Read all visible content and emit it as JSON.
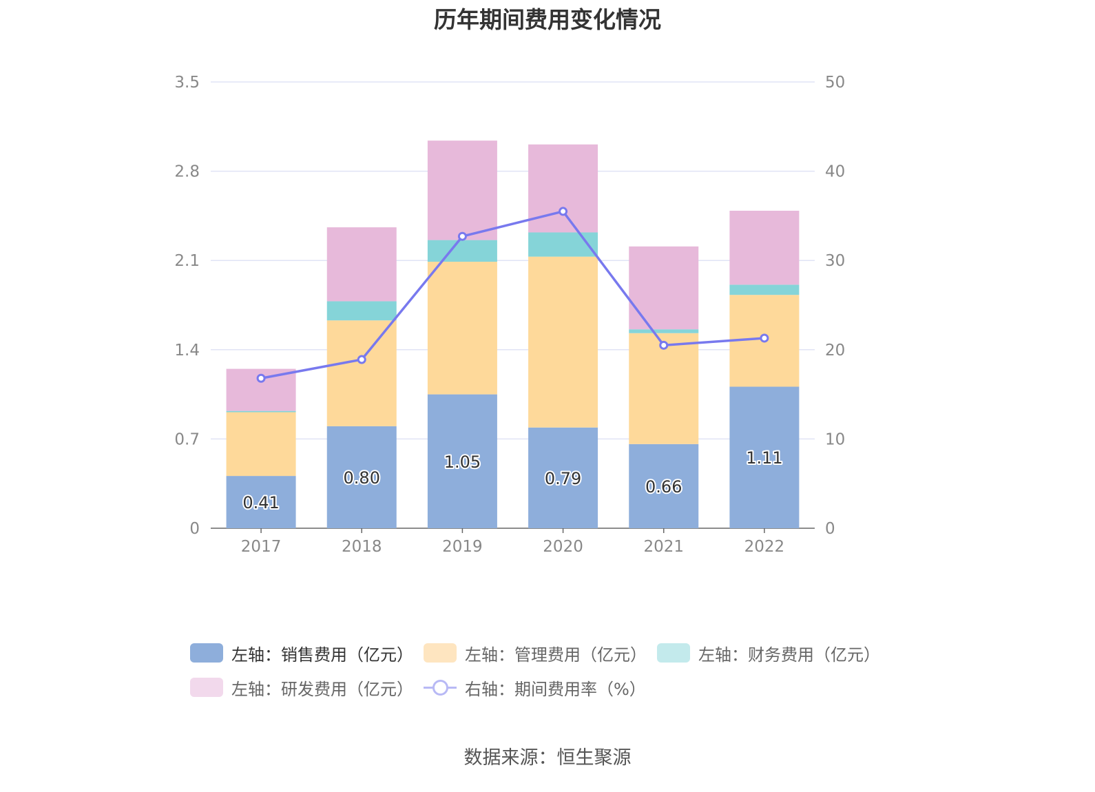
{
  "chart_data": {
    "type": "bar",
    "title": "历年期间费用变化情况",
    "categories": [
      "2017",
      "2018",
      "2019",
      "2020",
      "2021",
      "2022"
    ],
    "left_axis": {
      "ticks": [
        "0",
        "0.7",
        "1.4",
        "2.1",
        "2.8",
        "3.5"
      ],
      "range": [
        0,
        3.5
      ]
    },
    "right_axis": {
      "ticks": [
        "0",
        "10",
        "20",
        "30",
        "40",
        "50"
      ],
      "range": [
        0,
        50
      ]
    },
    "stacked": true,
    "grid": true,
    "legend_position": "bottom",
    "series": [
      {
        "name": "左轴：销售费用（亿元）",
        "type": "bar",
        "axis": "left",
        "color": "#8eaedb",
        "values": [
          0.41,
          0.8,
          1.05,
          0.79,
          0.66,
          1.11
        ],
        "labels": [
          "0.41",
          "0.80",
          "1.05",
          "0.79",
          "0.66",
          "1.11"
        ]
      },
      {
        "name": "左轴：管理费用（亿元）",
        "type": "bar",
        "axis": "left",
        "color": "#fed99a",
        "values": [
          0.5,
          0.83,
          1.04,
          1.34,
          0.87,
          0.72
        ]
      },
      {
        "name": "左轴：财务费用（亿元）",
        "type": "bar",
        "axis": "left",
        "color": "#85d4d8",
        "values": [
          0.01,
          0.15,
          0.17,
          0.19,
          0.03,
          0.08
        ]
      },
      {
        "name": "左轴：研发费用（亿元）",
        "type": "bar",
        "axis": "left",
        "color": "#e7b9da",
        "values": [
          0.33,
          0.58,
          0.78,
          0.69,
          0.65,
          0.58
        ]
      },
      {
        "name": "右轴：期间费用率（%）",
        "type": "line",
        "axis": "right",
        "color": "#7879ee",
        "values": [
          16.8,
          18.9,
          32.7,
          35.5,
          20.5,
          21.3
        ]
      }
    ],
    "legend_swatch_colors": [
      "#8eaedb",
      "#fee5c0",
      "#c3eaec",
      "#f2d9ec",
      "#b8b9f5"
    ]
  },
  "source_text": "数据来源：恒生聚源"
}
